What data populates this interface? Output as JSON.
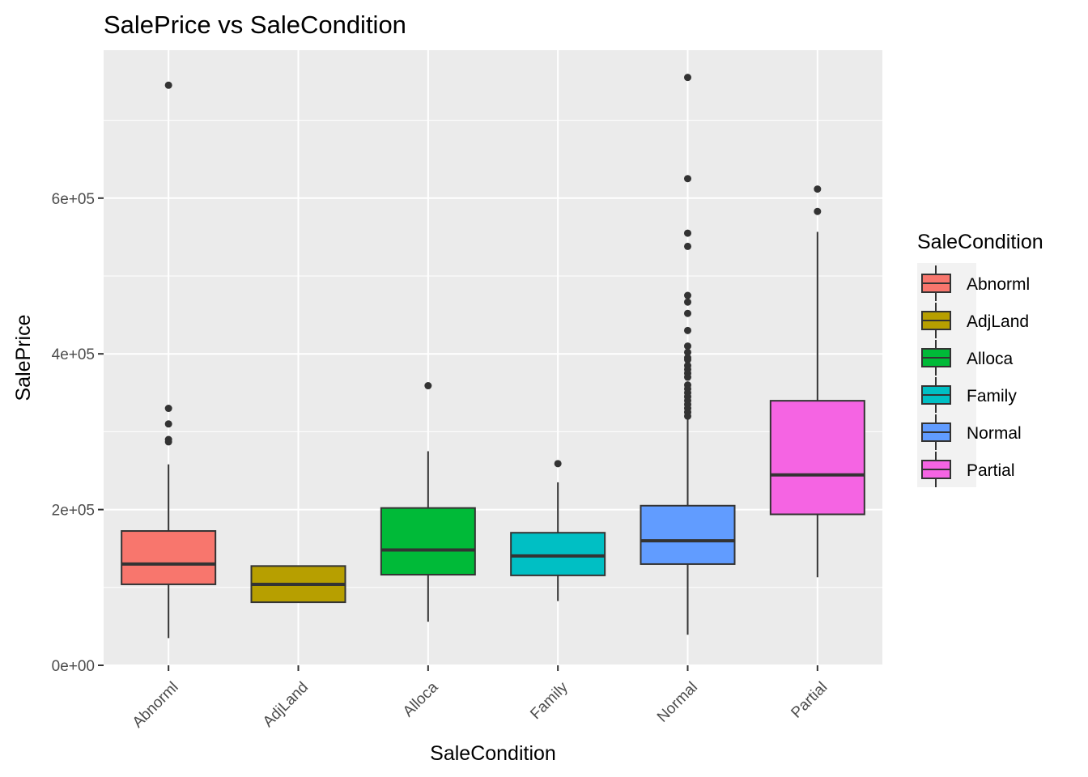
{
  "chart_data": {
    "type": "boxplot",
    "title": "SalePrice vs SaleCondition",
    "xlabel": "SaleCondition",
    "ylabel": "SalePrice",
    "ylim": [
      0,
      790000
    ],
    "y_ticks": [
      0,
      200000,
      400000,
      600000
    ],
    "y_tick_labels": [
      "0e+00",
      "2e+05",
      "4e+05",
      "6e+05"
    ],
    "grid": true,
    "legend": {
      "title": "SaleCondition",
      "position": "right"
    },
    "categories": [
      "Abnorml",
      "AdjLand",
      "Alloca",
      "Family",
      "Normal",
      "Partial"
    ],
    "colors": [
      "#F8766D",
      "#B79F00",
      "#00BA38",
      "#00BFC4",
      "#619CFF",
      "#F564E3"
    ],
    "boxes": [
      {
        "category": "Abnorml",
        "whisker_low": 34900,
        "q1": 104000,
        "median": 130000,
        "q3": 172500,
        "whisker_high": 258000,
        "outliers": [
          745000,
          330000,
          310000,
          290000,
          287000
        ]
      },
      {
        "category": "AdjLand",
        "whisker_low": 81000,
        "q1": 81000,
        "median": 104000,
        "q3": 127500,
        "whisker_high": 127500,
        "outliers": []
      },
      {
        "category": "Alloca",
        "whisker_low": 55993,
        "q1": 116383,
        "median": 148145,
        "q3": 202043,
        "whisker_high": 275000,
        "outliers": [
          359100
        ]
      },
      {
        "category": "Family",
        "whisker_low": 82500,
        "q1": 115500,
        "median": 140500,
        "q3": 170250,
        "whisker_high": 235000,
        "outliers": [
          259000
        ]
      },
      {
        "category": "Normal",
        "whisker_low": 39300,
        "q1": 130000,
        "median": 160000,
        "q3": 205000,
        "whisker_high": 317000,
        "outliers": [
          755000,
          625000,
          555000,
          538000,
          475000,
          466500,
          451950,
          430000,
          410000,
          402000,
          395000,
          392500,
          385000,
          380000,
          375000,
          370000,
          360000,
          355000,
          350000,
          345000,
          340000,
          335000,
          330000,
          325000,
          320000
        ]
      },
      {
        "category": "Partial",
        "whisker_low": 113000,
        "q1": 193879,
        "median": 244600,
        "q3": 339750,
        "whisker_high": 556581,
        "outliers": [
          611657,
          582933
        ]
      }
    ]
  }
}
